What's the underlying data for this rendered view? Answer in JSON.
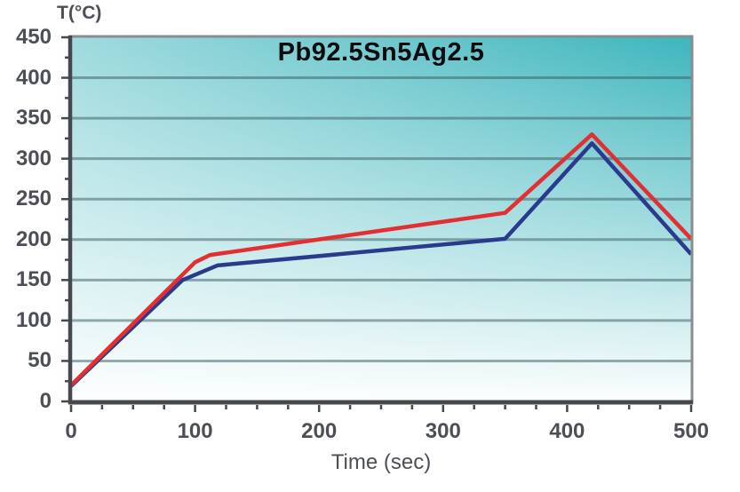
{
  "chart_data": {
    "type": "line",
    "title": "Pb92.5Sn5Ag2.5",
    "xlabel": "Time (sec)",
    "ylabel": "T(°C)",
    "xlim": [
      0,
      500
    ],
    "ylim": [
      0,
      450
    ],
    "x_major_ticks": [
      0,
      100,
      200,
      300,
      400,
      500
    ],
    "x_minor_step": 25,
    "y_major_ticks": [
      0,
      50,
      100,
      150,
      200,
      250,
      300,
      350,
      400,
      450
    ],
    "y_minor_step": 25,
    "grid": {
      "horizontal": true,
      "vertical": false,
      "every": 50
    },
    "legend": "none",
    "series": [
      {
        "name": "blue profile",
        "color": "#2a3a8c",
        "points": [
          [
            0,
            19
          ],
          [
            90,
            150
          ],
          [
            118,
            168
          ],
          [
            350,
            201
          ],
          [
            420,
            319
          ],
          [
            500,
            182
          ]
        ]
      },
      {
        "name": "red profile",
        "color": "#e32e32",
        "points": [
          [
            0,
            20
          ],
          [
            100,
            172
          ],
          [
            112,
            181
          ],
          [
            350,
            233
          ],
          [
            420,
            330
          ],
          [
            500,
            201
          ]
        ]
      }
    ],
    "colors": {
      "plot_bg_top": "#3eb6bd",
      "plot_bg_bottom": "#fcfefe",
      "gridline": "rgba(55,90,95,0.5)",
      "axis": "#45484c",
      "frame": "#898d90",
      "tick_text": "#4d4f56",
      "title_text": "#0c0c0e"
    }
  }
}
